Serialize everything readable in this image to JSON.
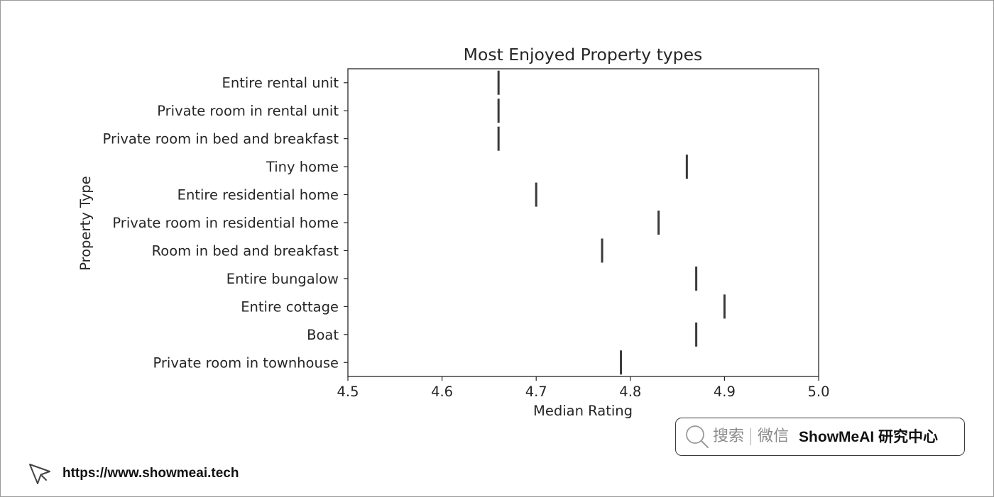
{
  "chart_data": {
    "type": "scatter",
    "orientation": "horizontal",
    "marker": "vertical-line",
    "title": "Most Enjoyed Property types",
    "xlabel": "Median Rating",
    "ylabel": "Property Type",
    "categories": [
      "Entire rental unit",
      "Private room in rental unit",
      "Private room in bed and breakfast",
      "Tiny home",
      "Entire residential home",
      "Private room in residential home",
      "Room in bed and breakfast",
      "Entire bungalow",
      "Entire cottage",
      "Boat",
      "Private room in townhouse"
    ],
    "values": [
      4.66,
      4.66,
      4.66,
      4.86,
      4.7,
      4.83,
      4.77,
      4.87,
      4.9,
      4.87,
      4.79
    ],
    "xlim": [
      4.5,
      5.0
    ],
    "xticks": [
      "4.5",
      "4.6",
      "4.7",
      "4.8",
      "4.9",
      "5.0"
    ],
    "grid": false,
    "mark_color": "#3a3a3a"
  },
  "watermark": {
    "search_icon": "search-icon",
    "search_label": "搜索",
    "channel_label": "微信",
    "brand": "ShowMeAI 研究中心"
  },
  "footer": {
    "icon": "cursor-icon",
    "url": "https://www.showmeai.tech"
  }
}
